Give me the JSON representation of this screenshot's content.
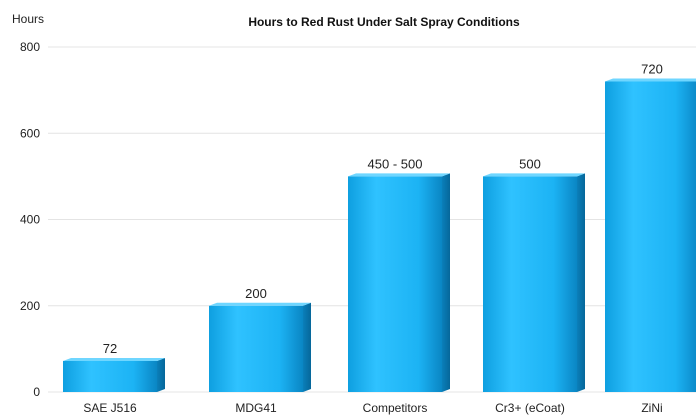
{
  "chart_data": {
    "type": "bar",
    "title": "Hours to Red Rust Under Salt Spray Conditions",
    "ylabel": "Hours",
    "xlabel": "",
    "ylim": [
      0,
      800
    ],
    "yticks": [
      "0",
      "200",
      "400",
      "600",
      "800"
    ],
    "grid": true,
    "legend": "none",
    "bar_color": "#1fb6f5",
    "categories": [
      "SAE J516",
      "MDG41",
      "Competitors",
      "Cr3+ (eCoat)",
      "ZiNi"
    ],
    "values": [
      72,
      200,
      500,
      500,
      720
    ],
    "data_labels": [
      "72",
      "200",
      "450 - 500",
      "500",
      "720"
    ]
  }
}
